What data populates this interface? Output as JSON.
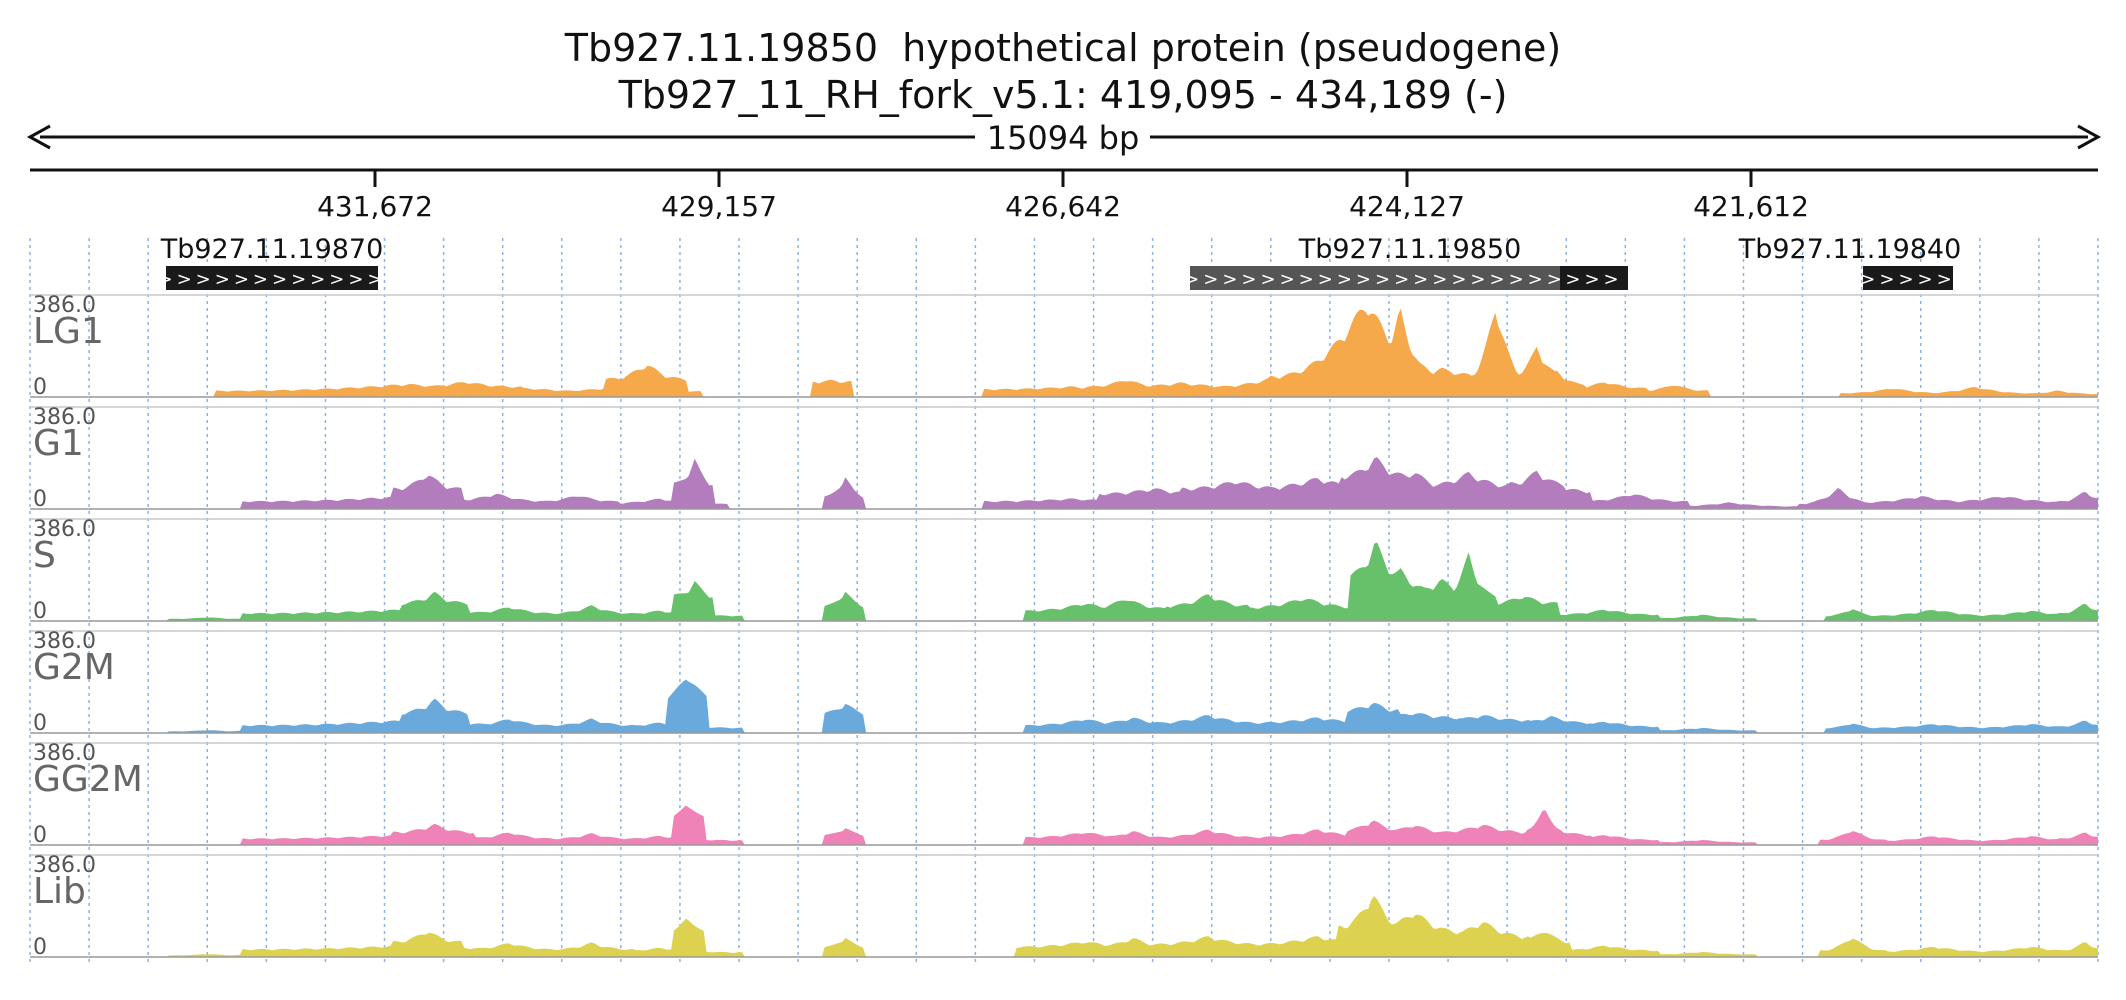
{
  "title": {
    "line1": "Tb927.11.19850  hypothetical protein (pseudogene)",
    "line2": "Tb927_11_RH_fork_v5.1: 419,095 - 434,189 (-)"
  },
  "ruler": {
    "span_label": "15094 bp",
    "ticks": [
      "431,672",
      "429,157",
      "426,642",
      "424,127",
      "421,612"
    ]
  },
  "region": {
    "start": 419095,
    "end": 434189,
    "strand": "-"
  },
  "genes": [
    {
      "name": "Tb927.11.19870",
      "arrows": ">>>>>>>>>>>>",
      "type": "gene"
    },
    {
      "name": "Tb927.11.19850",
      "arrows": ">>>>>>>>>>>>>>>>>>>>>>>>>>",
      "type": "pseudogene"
    },
    {
      "name": "Tb927.11.19840",
      "arrows": ">>>>>",
      "type": "gene"
    }
  ],
  "colors": {
    "LG1": "#f5a94a",
    "G1": "#b27cbd",
    "S": "#67c06a",
    "G2M": "#6aa9dc",
    "GG2M": "#ef82b6",
    "Lib": "#dcd24f",
    "gene_box": "#1a1a1a",
    "pseudogene_box": "#555555",
    "gridline": "#8ab4e8"
  },
  "chart_data": {
    "type": "area",
    "x_label": "",
    "y_range": [
      0,
      386.0
    ],
    "y_max_label": "386.0",
    "y_min_label": "0",
    "grid": true,
    "x_domain_bp": [
      0,
      15094
    ],
    "series": [
      {
        "name": "LG1",
        "peaks": [
          [
            1600,
            0,
            0,
            3
          ],
          [
            1650,
            0,
            0,
            3
          ],
          [
            2750,
            1400,
            24,
            50
          ],
          [
            3180,
            400,
            40,
            60
          ],
          [
            3600,
            900,
            18,
            35
          ],
          [
            4500,
            300,
            70,
            130
          ],
          [
            4300,
            600,
            22,
            40
          ],
          [
            5850,
            150,
            60,
            65
          ],
          [
            7600,
            650,
            30,
            40
          ],
          [
            8000,
            300,
            40,
            70
          ],
          [
            8400,
            700,
            35,
            55
          ],
          [
            8800,
            400,
            15,
            35
          ],
          [
            9100,
            500,
            40,
            80
          ],
          [
            9750,
            700,
            80,
            370
          ],
          [
            10000,
            250,
            90,
            340
          ],
          [
            10300,
            600,
            70,
            110
          ],
          [
            10700,
            250,
            60,
            360
          ],
          [
            10700,
            600,
            50,
            80
          ],
          [
            11000,
            180,
            90,
            200
          ],
          [
            11150,
            200,
            50,
            100
          ],
          [
            11500,
            300,
            35,
            60
          ],
          [
            12000,
            250,
            25,
            50
          ],
          [
            13600,
            400,
            15,
            35
          ],
          [
            14200,
            400,
            15,
            40
          ],
          [
            14800,
            300,
            12,
            25
          ]
        ]
      },
      {
        "name": "G1",
        "peaks": [
          [
            350,
            0,
            0,
            3
          ],
          [
            1650,
            0,
            0,
            3
          ],
          [
            2400,
            200,
            15,
            35
          ],
          [
            2900,
            250,
            80,
            140
          ],
          [
            2750,
            1200,
            30,
            50
          ],
          [
            3400,
            400,
            30,
            60
          ],
          [
            4000,
            300,
            30,
            55
          ],
          [
            4850,
            150,
            100,
            195
          ],
          [
            4600,
            500,
            20,
            40
          ],
          [
            5950,
            150,
            50,
            130
          ],
          [
            7600,
            650,
            30,
            40
          ],
          [
            8200,
            400,
            60,
            80
          ],
          [
            8800,
            400,
            80,
            110
          ],
          [
            9400,
            500,
            80,
            120
          ],
          [
            9820,
            250,
            130,
            200
          ],
          [
            10100,
            250,
            90,
            150
          ],
          [
            10500,
            350,
            90,
            140
          ],
          [
            11000,
            200,
            100,
            150
          ],
          [
            11100,
            300,
            70,
            100
          ],
          [
            11700,
            400,
            30,
            60
          ],
          [
            12400,
            500,
            10,
            25
          ],
          [
            13200,
            300,
            20,
            80
          ],
          [
            13800,
            500,
            25,
            50
          ],
          [
            14400,
            600,
            25,
            50
          ],
          [
            15000,
            200,
            30,
            70
          ]
        ]
      },
      {
        "name": "S",
        "peaks": [
          [
            1300,
            300,
            8,
            15
          ],
          [
            2000,
            400,
            10,
            20
          ],
          [
            2250,
            100,
            10,
            25
          ],
          [
            2950,
            250,
            70,
            110
          ],
          [
            2750,
            1200,
            30,
            45
          ],
          [
            3500,
            350,
            30,
            55
          ],
          [
            4100,
            300,
            30,
            60
          ],
          [
            4850,
            150,
            100,
            155
          ],
          [
            4600,
            600,
            20,
            40
          ],
          [
            5950,
            150,
            60,
            120
          ],
          [
            7700,
            450,
            40,
            70
          ],
          [
            8000,
            300,
            50,
            90
          ],
          [
            8600,
            300,
            60,
            105
          ],
          [
            9300,
            500,
            50,
            90
          ],
          [
            9820,
            200,
            180,
            310
          ],
          [
            10000,
            250,
            120,
            200
          ],
          [
            10300,
            350,
            100,
            160
          ],
          [
            10500,
            200,
            100,
            260
          ],
          [
            10900,
            250,
            70,
            100
          ],
          [
            11500,
            400,
            25,
            45
          ],
          [
            12200,
            400,
            10,
            25
          ],
          [
            13300,
            200,
            20,
            50
          ],
          [
            13900,
            500,
            20,
            45
          ],
          [
            14600,
            500,
            20,
            40
          ],
          [
            15000,
            200,
            30,
            70
          ]
        ]
      },
      {
        "name": "G2M",
        "peaks": [
          [
            1300,
            300,
            6,
            12
          ],
          [
            2000,
            500,
            8,
            18
          ],
          [
            2250,
            100,
            10,
            25
          ],
          [
            2950,
            250,
            80,
            130
          ],
          [
            2750,
            1200,
            30,
            50
          ],
          [
            3500,
            350,
            30,
            55
          ],
          [
            4100,
            300,
            30,
            55
          ],
          [
            4800,
            150,
            150,
            240
          ],
          [
            4600,
            600,
            20,
            40
          ],
          [
            5950,
            150,
            80,
            120
          ],
          [
            7700,
            450,
            30,
            55
          ],
          [
            8050,
            250,
            40,
            60
          ],
          [
            8600,
            400,
            40,
            70
          ],
          [
            9400,
            500,
            40,
            60
          ],
          [
            9800,
            200,
            90,
            120
          ],
          [
            10100,
            350,
            60,
            80
          ],
          [
            10600,
            350,
            50,
            70
          ],
          [
            11100,
            300,
            40,
            65
          ],
          [
            11500,
            400,
            25,
            45
          ],
          [
            12200,
            400,
            10,
            20
          ],
          [
            13300,
            200,
            20,
            40
          ],
          [
            13900,
            500,
            20,
            35
          ],
          [
            14600,
            500,
            20,
            35
          ],
          [
            15000,
            200,
            25,
            50
          ]
        ]
      },
      {
        "name": "GG2M",
        "peaks": [
          [
            2400,
            200,
            10,
            25
          ],
          [
            2950,
            300,
            50,
            80
          ],
          [
            2750,
            1200,
            25,
            40
          ],
          [
            3500,
            350,
            25,
            50
          ],
          [
            4100,
            300,
            25,
            45
          ],
          [
            4800,
            120,
            110,
            180
          ],
          [
            4600,
            600,
            18,
            35
          ],
          [
            5950,
            150,
            40,
            70
          ],
          [
            7700,
            450,
            30,
            50
          ],
          [
            8050,
            250,
            30,
            55
          ],
          [
            8600,
            400,
            30,
            60
          ],
          [
            9400,
            500,
            30,
            60
          ],
          [
            9800,
            200,
            60,
            100
          ],
          [
            10100,
            350,
            45,
            80
          ],
          [
            10600,
            350,
            50,
            80
          ],
          [
            11050,
            120,
            60,
            170
          ],
          [
            11100,
            300,
            40,
            70
          ],
          [
            11500,
            400,
            20,
            40
          ],
          [
            12200,
            400,
            10,
            20
          ],
          [
            13300,
            250,
            20,
            60
          ],
          [
            13900,
            500,
            15,
            35
          ],
          [
            14600,
            500,
            15,
            35
          ],
          [
            15000,
            200,
            25,
            50
          ]
        ]
      },
      {
        "name": "Lib",
        "peaks": [
          [
            1300,
            300,
            6,
            12
          ],
          [
            2000,
            500,
            8,
            18
          ],
          [
            2250,
            100,
            10,
            25
          ],
          [
            2900,
            250,
            60,
            105
          ],
          [
            2750,
            1200,
            30,
            45
          ],
          [
            3500,
            350,
            30,
            55
          ],
          [
            4100,
            300,
            30,
            55
          ],
          [
            4800,
            120,
            100,
            175
          ],
          [
            4600,
            600,
            18,
            35
          ],
          [
            5950,
            150,
            40,
            80
          ],
          [
            7700,
            500,
            40,
            60
          ],
          [
            8050,
            250,
            45,
            75
          ],
          [
            8600,
            400,
            50,
            80
          ],
          [
            9400,
            500,
            50,
            80
          ],
          [
            9800,
            250,
            120,
            250
          ],
          [
            10100,
            350,
            100,
            180
          ],
          [
            10600,
            350,
            80,
            140
          ],
          [
            11050,
            200,
            60,
            110
          ],
          [
            11500,
            400,
            25,
            45
          ],
          [
            12200,
            400,
            10,
            20
          ],
          [
            13300,
            250,
            25,
            80
          ],
          [
            13900,
            500,
            20,
            40
          ],
          [
            14600,
            500,
            20,
            40
          ],
          [
            15000,
            200,
            25,
            60
          ]
        ]
      }
    ]
  }
}
